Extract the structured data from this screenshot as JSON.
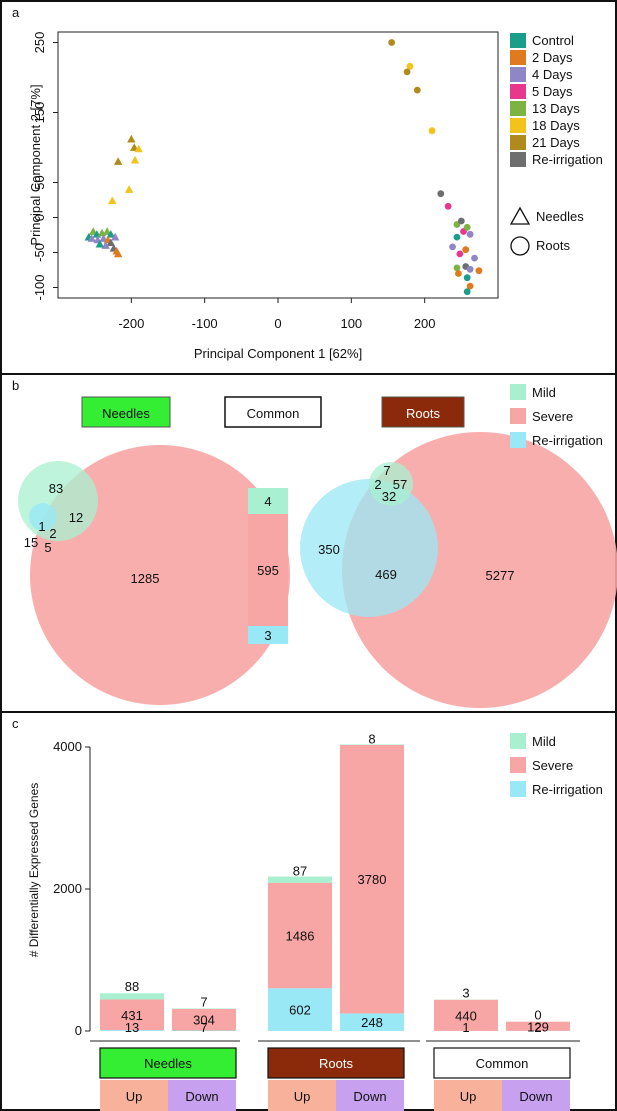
{
  "panels": {
    "a": "a",
    "b": "b",
    "c": "c"
  },
  "colors": {
    "Control": "#1a9e8a",
    "2 Days": "#e07a1f",
    "4 Days": "#8f86c6",
    "5 Days": "#e8388d",
    "13 Days": "#7cb342",
    "18 Days": "#f2c31b",
    "21 Days": "#b08a1c",
    "Re-irrigation": "#6e6e6e",
    "mild": "#a8f0d0",
    "severe": "#f8a5a5",
    "reirr": "#99e8f5",
    "needles_box": "#33ee33",
    "roots_box": "#8b2a0a",
    "up_box": "#f8b19a",
    "down_box": "#c8a0f0"
  },
  "chart_data": [
    {
      "type": "scatter",
      "panel": "a",
      "xlabel": "Principal Component 1 [62%]",
      "ylabel": "Principal Component 2 [7%]",
      "xlim": [
        -300,
        300
      ],
      "ylim": [
        -115,
        265
      ],
      "xticks": [
        -200,
        -100,
        0,
        100,
        200
      ],
      "yticks": [
        -100,
        -50,
        0,
        50,
        150,
        250
      ],
      "ytick_labels": [
        "-100",
        "-50",
        "0",
        "50",
        "150",
        "250"
      ],
      "legend": [
        "Control",
        "2 Days",
        "4 Days",
        "5 Days",
        "13 Days",
        "18 Days",
        "21 Days",
        "Re-irrigation"
      ],
      "shape_legend": [
        "Needles",
        "Roots"
      ],
      "points": [
        {
          "x": 155,
          "y": 250,
          "g": "21 Days",
          "s": "Roots"
        },
        {
          "x": 180,
          "y": 216,
          "g": "18 Days",
          "s": "Roots"
        },
        {
          "x": 176,
          "y": 208,
          "g": "21 Days",
          "s": "Roots"
        },
        {
          "x": 190,
          "y": 182,
          "g": "21 Days",
          "s": "Roots"
        },
        {
          "x": 210,
          "y": 124,
          "g": "18 Days",
          "s": "Roots"
        },
        {
          "x": 222,
          "y": 34,
          "g": "Re-irrigation",
          "s": "Roots"
        },
        {
          "x": 232,
          "y": 16,
          "g": "5 Days",
          "s": "Roots"
        },
        {
          "x": 244,
          "y": -10,
          "g": "13 Days",
          "s": "Roots"
        },
        {
          "x": 250,
          "y": -5,
          "g": "Re-irrigation",
          "s": "Roots"
        },
        {
          "x": 253,
          "y": -20,
          "g": "5 Days",
          "s": "Roots"
        },
        {
          "x": 258,
          "y": -14,
          "g": "13 Days",
          "s": "Roots"
        },
        {
          "x": 262,
          "y": -24,
          "g": "4 Days",
          "s": "Roots"
        },
        {
          "x": 244,
          "y": -28,
          "g": "Control",
          "s": "Roots"
        },
        {
          "x": 238,
          "y": -42,
          "g": "4 Days",
          "s": "Roots"
        },
        {
          "x": 248,
          "y": -52,
          "g": "5 Days",
          "s": "Roots"
        },
        {
          "x": 256,
          "y": -46,
          "g": "2 Days",
          "s": "Roots"
        },
        {
          "x": 268,
          "y": -58,
          "g": "4 Days",
          "s": "Roots"
        },
        {
          "x": 244,
          "y": -72,
          "g": "13 Days",
          "s": "Roots"
        },
        {
          "x": 246,
          "y": -80,
          "g": "2 Days",
          "s": "Roots"
        },
        {
          "x": 256,
          "y": -70,
          "g": "Re-irrigation",
          "s": "Roots"
        },
        {
          "x": 262,
          "y": -74,
          "g": "4 Days",
          "s": "Roots"
        },
        {
          "x": 274,
          "y": -76,
          "g": "2 Days",
          "s": "Roots"
        },
        {
          "x": 258,
          "y": -86,
          "g": "Control",
          "s": "Roots"
        },
        {
          "x": 262,
          "y": -98,
          "g": "2 Days",
          "s": "Roots"
        },
        {
          "x": 258,
          "y": -106,
          "g": "Control",
          "s": "Roots"
        },
        {
          "x": -200,
          "y": 112,
          "g": "21 Days",
          "s": "Needles"
        },
        {
          "x": -196,
          "y": 100,
          "g": "21 Days",
          "s": "Needles"
        },
        {
          "x": -190,
          "y": 98,
          "g": "18 Days",
          "s": "Needles"
        },
        {
          "x": -218,
          "y": 80,
          "g": "21 Days",
          "s": "Needles"
        },
        {
          "x": -195,
          "y": 82,
          "g": "18 Days",
          "s": "Needles"
        },
        {
          "x": -203,
          "y": 40,
          "g": "18 Days",
          "s": "Needles"
        },
        {
          "x": -226,
          "y": 24,
          "g": "18 Days",
          "s": "Needles"
        },
        {
          "x": -252,
          "y": -20,
          "g": "13 Days",
          "s": "Needles"
        },
        {
          "x": -247,
          "y": -24,
          "g": "Control",
          "s": "Needles"
        },
        {
          "x": -240,
          "y": -22,
          "g": "13 Days",
          "s": "Needles"
        },
        {
          "x": -233,
          "y": -20,
          "g": "13 Days",
          "s": "Needles"
        },
        {
          "x": -228,
          "y": -24,
          "g": "Control",
          "s": "Needles"
        },
        {
          "x": -258,
          "y": -28,
          "g": "Control",
          "s": "Needles"
        },
        {
          "x": -254,
          "y": -30,
          "g": "4 Days",
          "s": "Needles"
        },
        {
          "x": -246,
          "y": -32,
          "g": "4 Days",
          "s": "Needles"
        },
        {
          "x": -238,
          "y": -30,
          "g": "4 Days",
          "s": "Needles"
        },
        {
          "x": -232,
          "y": -32,
          "g": "2 Days",
          "s": "Needles"
        },
        {
          "x": -222,
          "y": -28,
          "g": "4 Days",
          "s": "Needles"
        },
        {
          "x": -228,
          "y": -36,
          "g": "Re-irrigation",
          "s": "Needles"
        },
        {
          "x": -235,
          "y": -40,
          "g": "4 Days",
          "s": "Needles"
        },
        {
          "x": -243,
          "y": -38,
          "g": "Control",
          "s": "Needles"
        },
        {
          "x": -224,
          "y": -44,
          "g": "Re-irrigation",
          "s": "Needles"
        },
        {
          "x": -220,
          "y": -48,
          "g": "2 Days",
          "s": "Needles"
        },
        {
          "x": -218,
          "y": -52,
          "g": "2 Days",
          "s": "Needles"
        }
      ]
    },
    {
      "type": "venn",
      "panel": "b",
      "legend": [
        "Mild",
        "Severe",
        "Re-irrigation"
      ],
      "groups": {
        "needles": {
          "label": "Needles",
          "mild_only": 83,
          "severe_only": 1285,
          "reirr_only": 15,
          "mild_reirr": 1,
          "all_three": 2,
          "mild_severe": 12,
          "severe_reirr": 5
        },
        "common": {
          "label": "Common",
          "mild": 4,
          "severe": 595,
          "reirr": 3
        },
        "roots": {
          "label": "Roots",
          "mild_only": 7,
          "mild_reirr": 2,
          "all_three": 57,
          "mild_severe": 32,
          "reirr_only": 350,
          "severe_reirr": 469,
          "severe_only": 5277
        }
      }
    },
    {
      "type": "bar",
      "panel": "c",
      "ylabel": "# Differentially Expressed Genes",
      "ylim": [
        0,
        4000
      ],
      "yticks": [
        0,
        2000,
        4000
      ],
      "legend": [
        "Mild",
        "Severe",
        "Re-irrigation"
      ],
      "groups": [
        "Needles",
        "Roots",
        "Common"
      ],
      "subgroups": [
        "Up",
        "Down"
      ],
      "bars": [
        {
          "group": "Needles",
          "dir": "Up",
          "reirr": 13,
          "severe": 431,
          "mild": 88
        },
        {
          "group": "Needles",
          "dir": "Down",
          "reirr": 7,
          "severe": 304,
          "mild": 7
        },
        {
          "group": "Roots",
          "dir": "Up",
          "reirr": 602,
          "severe": 1486,
          "mild": 87
        },
        {
          "group": "Roots",
          "dir": "Down",
          "reirr": 248,
          "severe": 3780,
          "mild": 8
        },
        {
          "group": "Common",
          "dir": "Up",
          "reirr": 1,
          "severe": 440,
          "mild": 3
        },
        {
          "group": "Common",
          "dir": "Down",
          "reirr": 2,
          "severe": 129,
          "mild": 0
        }
      ]
    }
  ]
}
